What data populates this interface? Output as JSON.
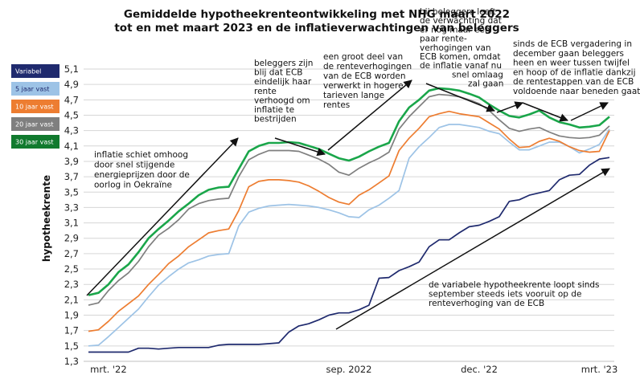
{
  "chart_data": {
    "type": "line",
    "title": "Gemiddelde hypotheekrenteontwikkeling met NHG maart 2022 tot en met maart 2023 en de inflatieverwachtingen van beleggers",
    "title_lines": [
      "Gemiddelde hypotheekrenteontwikkeling met NHG maart 2022",
      "tot en met maart 2023 en de inflatieverwachtingen van beleggers"
    ],
    "ylabel": "hypotheekrente",
    "xlabel": "",
    "ylim": [
      1.3,
      5.1
    ],
    "yticks": [
      "1,3",
      "1,5",
      "1,7",
      "1,9",
      "2,1",
      "2,3",
      "2,5",
      "2,7",
      "2,9",
      "3,1",
      "3,3",
      "3,5",
      "3,7",
      "3,9",
      "4,1",
      "4,3",
      "4,5",
      "4,7",
      "4,9",
      "5,1"
    ],
    "xtick_labels": [
      {
        "label": "mrt. '22",
        "index": 2
      },
      {
        "label": "sep. 2022",
        "index": 26
      },
      {
        "label": "dec. '22",
        "index": 39
      },
      {
        "label": "mrt. '23",
        "index": 51
      }
    ],
    "n_points": 53,
    "grid": true,
    "legend_position": "left",
    "series": [
      {
        "name": "Variabel",
        "color": "#1f2a6e",
        "text_color": "#ffffff",
        "values": [
          1.42,
          1.42,
          1.42,
          1.42,
          1.42,
          1.47,
          1.47,
          1.46,
          1.47,
          1.48,
          1.48,
          1.48,
          1.48,
          1.51,
          1.52,
          1.52,
          1.52,
          1.52,
          1.53,
          1.54,
          1.68,
          1.76,
          1.79,
          1.84,
          1.9,
          1.93,
          1.93,
          1.97,
          2.03,
          2.38,
          2.39,
          2.48,
          2.53,
          2.59,
          2.79,
          2.88,
          2.88,
          2.97,
          3.05,
          3.07,
          3.12,
          3.18,
          3.38,
          3.4,
          3.46,
          3.49,
          3.52,
          3.66,
          3.72,
          3.73,
          3.85,
          3.93,
          3.95
        ]
      },
      {
        "name": "5 jaar vast",
        "color": "#9dc3e6",
        "text_color": "#1f2a6e",
        "values": [
          1.5,
          1.51,
          1.62,
          1.74,
          1.86,
          1.98,
          2.14,
          2.29,
          2.4,
          2.5,
          2.58,
          2.62,
          2.67,
          2.69,
          2.7,
          3.06,
          3.24,
          3.29,
          3.32,
          3.33,
          3.34,
          3.33,
          3.32,
          3.3,
          3.27,
          3.23,
          3.18,
          3.17,
          3.27,
          3.33,
          3.42,
          3.52,
          3.94,
          4.09,
          4.21,
          4.34,
          4.38,
          4.38,
          4.36,
          4.34,
          4.29,
          4.26,
          4.15,
          4.05,
          4.05,
          4.1,
          4.15,
          4.15,
          4.09,
          4.01,
          4.06,
          4.12,
          4.32
        ]
      },
      {
        "name": "10 jaar vast",
        "color": "#ed7d31",
        "text_color": "#ffffff",
        "values": [
          1.69,
          1.71,
          1.82,
          1.95,
          2.05,
          2.15,
          2.3,
          2.43,
          2.57,
          2.67,
          2.79,
          2.88,
          2.97,
          3.0,
          3.02,
          3.26,
          3.57,
          3.64,
          3.66,
          3.66,
          3.65,
          3.63,
          3.58,
          3.51,
          3.43,
          3.37,
          3.34,
          3.46,
          3.53,
          3.62,
          3.71,
          4.04,
          4.2,
          4.33,
          4.48,
          4.52,
          4.55,
          4.52,
          4.5,
          4.48,
          4.4,
          4.32,
          4.19,
          4.08,
          4.09,
          4.16,
          4.2,
          4.16,
          4.09,
          4.04,
          4.02,
          4.03,
          4.3
        ]
      },
      {
        "name": "20 jaar vast",
        "color": "#7f7f7f",
        "text_color": "#ffffff",
        "values": [
          2.03,
          2.06,
          2.22,
          2.35,
          2.45,
          2.6,
          2.79,
          2.94,
          3.03,
          3.14,
          3.28,
          3.35,
          3.39,
          3.41,
          3.42,
          3.7,
          3.92,
          3.99,
          4.04,
          4.04,
          4.04,
          4.03,
          3.98,
          3.93,
          3.86,
          3.76,
          3.72,
          3.81,
          3.88,
          3.94,
          4.02,
          4.32,
          4.48,
          4.61,
          4.74,
          4.77,
          4.76,
          4.74,
          4.7,
          4.65,
          4.56,
          4.44,
          4.33,
          4.29,
          4.32,
          4.34,
          4.28,
          4.23,
          4.21,
          4.2,
          4.21,
          4.24,
          4.36
        ]
      },
      {
        "name": "30 jaar vast",
        "color": "#1aa64a",
        "legend_color": "#117a2e",
        "text_color": "#ffffff",
        "values": [
          2.16,
          2.19,
          2.3,
          2.46,
          2.56,
          2.72,
          2.9,
          3.02,
          3.13,
          3.25,
          3.35,
          3.46,
          3.53,
          3.56,
          3.57,
          3.8,
          4.03,
          4.1,
          4.14,
          4.14,
          4.15,
          4.14,
          4.1,
          4.06,
          4.0,
          3.94,
          3.91,
          3.96,
          4.03,
          4.09,
          4.14,
          4.42,
          4.6,
          4.7,
          4.82,
          4.85,
          4.84,
          4.82,
          4.78,
          4.73,
          4.64,
          4.56,
          4.49,
          4.47,
          4.51,
          4.56,
          4.47,
          4.41,
          4.38,
          4.34,
          4.35,
          4.37,
          4.48
        ]
      }
    ],
    "annotations": [
      {
        "id": "inflatie",
        "lines": [
          "inflatie schiet omhoog",
          "door snel stijgende",
          "energieprijzen door de",
          "oorlog in Oekraïne"
        ]
      },
      {
        "id": "beleggers-ecb",
        "lines": [
          "beleggers zijn",
          "blij dat ECB",
          "eindelijk haar",
          "rente",
          "verhoogd om",
          "inflatie te",
          "bestrijden"
        ]
      },
      {
        "id": "groot-deel",
        "lines": [
          "een groot deel van",
          "de renteverhogingen",
          "van de ECB worden",
          "verwerkt in hogere",
          "tarieven lange",
          "rentes"
        ]
      },
      {
        "id": "verwachting",
        "lines": [
          "bij beleggers leeft",
          "de verwachting dat",
          "er nog maar een",
          "paar rente-",
          "verhogingen van",
          "ECB komen, omdat",
          "de inflatie vanaf nu",
          "snel omlaag",
          "zal gaan"
        ]
      },
      {
        "id": "sinds-ecb",
        "lines": [
          "sinds de ECB vergadering in",
          "december gaan beleggers",
          "heen en weer tussen twijfel",
          "en hoop of de inflatie dankzij",
          "de rentestappen van de ECB",
          "voldoende naar beneden gaat"
        ]
      },
      {
        "id": "variabele",
        "lines": [
          "de variabele hypotheekrente loopt sinds",
          "september steeds iets vooruit op de",
          "renteverhoging van de ECB"
        ]
      }
    ]
  }
}
